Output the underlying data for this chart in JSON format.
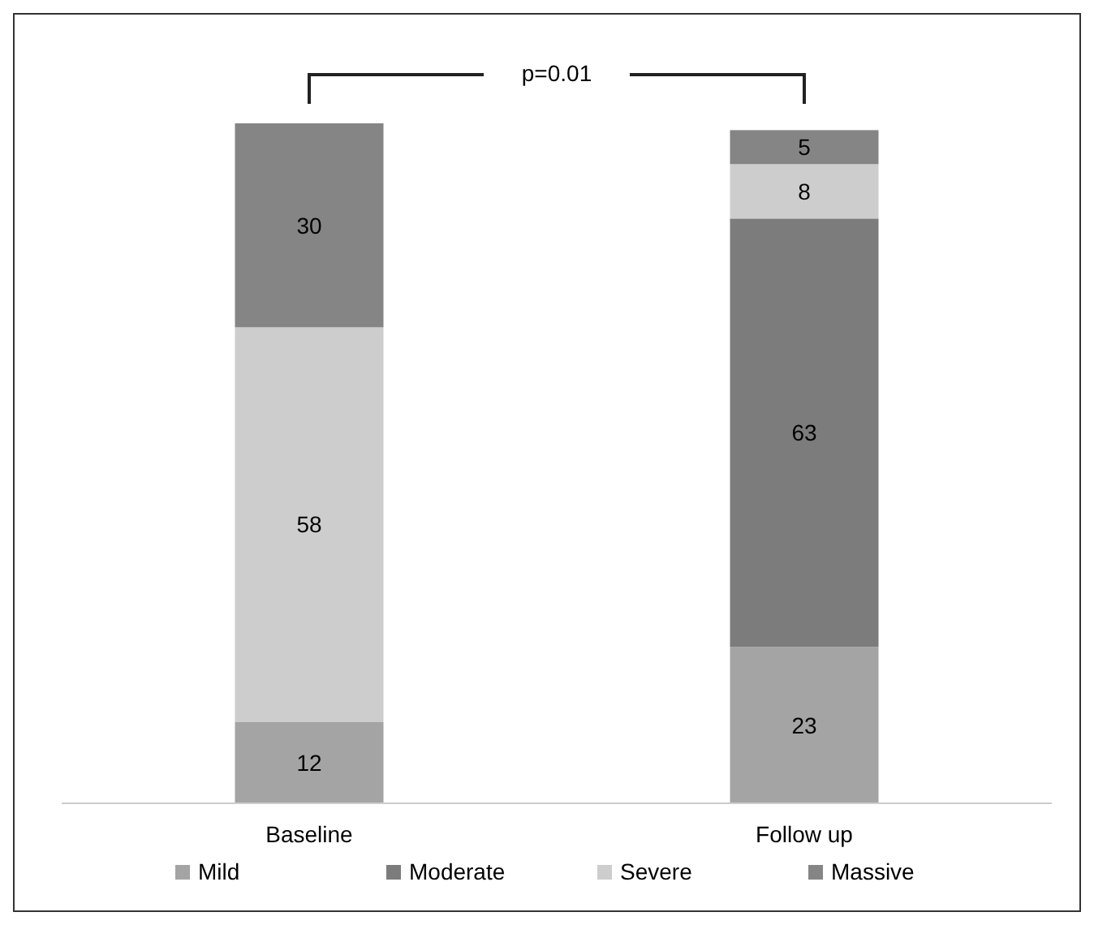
{
  "chart_data": {
    "type": "bar",
    "stacked": true,
    "categories": [
      "Baseline",
      "Follow up"
    ],
    "series": [
      {
        "name": "Mild",
        "color": "#a4a4a4",
        "values": [
          12,
          23
        ]
      },
      {
        "name": "Moderate",
        "color": "#7c7c7c",
        "values": [
          null,
          63
        ]
      },
      {
        "name": "Severe",
        "color": "#cdcdcd",
        "values": [
          58,
          8
        ]
      },
      {
        "name": "Massive",
        "color": "#858585",
        "values": [
          30,
          5
        ]
      }
    ],
    "data_labels": true,
    "legend": "bottom",
    "annotations": [
      "p=0.01"
    ]
  }
}
